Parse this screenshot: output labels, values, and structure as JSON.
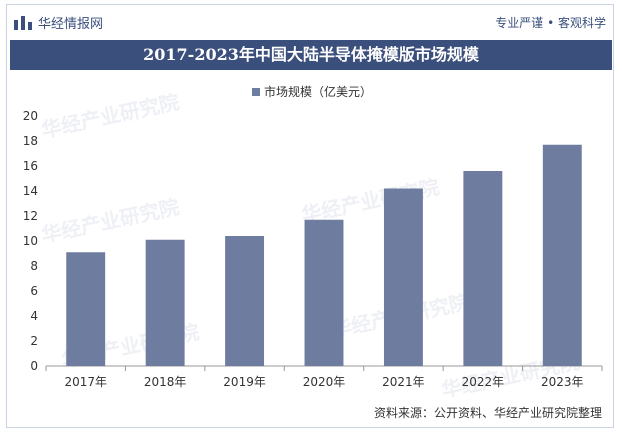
{
  "header": {
    "logo_text": "华经情报网",
    "slogan": "专业严谨 • 客观科学"
  },
  "source": "资料来源：公开资料、华经产业研究院整理",
  "watermark": "华经产业研究院",
  "colors": {
    "bar": "#6e7c9f",
    "title_bg": "#3b4f7c",
    "text": "#333333"
  },
  "chart_data": {
    "type": "bar",
    "title": "2017-2023年中国大陆半导体掩模版市场规模",
    "categories": [
      "2017年",
      "2018年",
      "2019年",
      "2020年",
      "2021年",
      "2022年",
      "2023年"
    ],
    "series": [
      {
        "name": "市场规模（亿美元）",
        "values": [
          9.1,
          10.1,
          10.4,
          11.7,
          14.2,
          15.6,
          17.7
        ]
      }
    ],
    "yticks": [
      0,
      2,
      4,
      6,
      8,
      10,
      12,
      14,
      16,
      18,
      20
    ],
    "ylim": [
      0,
      20
    ],
    "legend": "top-center",
    "grid": false
  }
}
